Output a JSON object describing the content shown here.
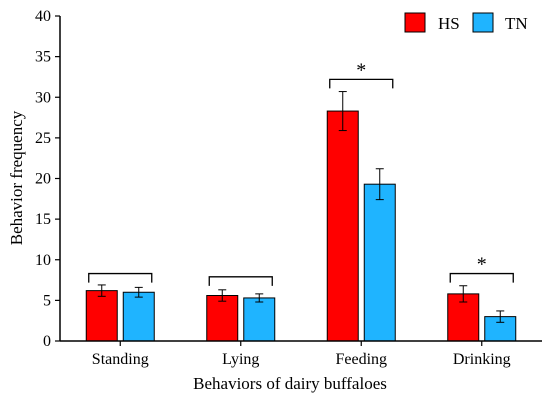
{
  "chart_data": {
    "type": "bar",
    "xlabel": "Behaviors of dairy buffaloes",
    "ylabel": "Behavior frequency",
    "ylim": [
      0,
      40
    ],
    "yticks": [
      0,
      5,
      10,
      15,
      20,
      25,
      30,
      35,
      40
    ],
    "grid": false,
    "legend_position": "top-right",
    "categories": [
      "Standing",
      "Lying",
      "Feeding",
      "Drinking"
    ],
    "series": [
      {
        "name": "HS",
        "color": "#ff0000",
        "values": [
          6.2,
          5.6,
          28.3,
          5.8
        ],
        "errors": [
          0.7,
          0.7,
          2.4,
          1.0
        ]
      },
      {
        "name": "TN",
        "color": "#1fb4ff",
        "values": [
          6.0,
          5.3,
          19.3,
          3.0
        ],
        "errors": [
          0.6,
          0.5,
          1.9,
          0.7
        ]
      }
    ],
    "comparisons": [
      {
        "category": "Standing",
        "label": "",
        "top": 8.3
      },
      {
        "category": "Lying",
        "label": "",
        "top": 7.9
      },
      {
        "category": "Feeding",
        "label": "*",
        "top": 32.2
      },
      {
        "category": "Drinking",
        "label": "*",
        "top": 8.3
      }
    ]
  }
}
